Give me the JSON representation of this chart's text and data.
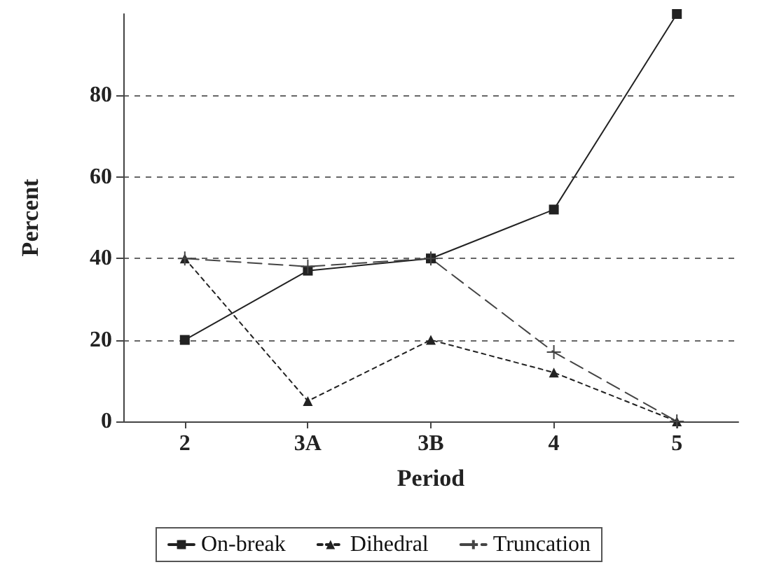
{
  "chart_data": {
    "type": "line",
    "xlabel": "Period",
    "ylabel": "Percent",
    "categories": [
      "2",
      "3A",
      "3B",
      "4",
      "5"
    ],
    "series": [
      {
        "name": "On-break",
        "color": "#222222",
        "marker": "square",
        "line_style": "solid",
        "values": [
          20,
          37,
          40,
          52,
          100
        ]
      },
      {
        "name": "Dihedral",
        "color": "#222222",
        "marker": "triangle",
        "line_style": "dotted",
        "values": [
          40,
          5,
          20,
          12,
          0
        ]
      },
      {
        "name": "Truncation",
        "color": "#444444",
        "marker": "cross",
        "line_style": "dashed",
        "values": [
          40,
          38,
          40,
          17,
          0
        ]
      }
    ],
    "ylim": [
      0,
      100
    ],
    "yticks": [
      0,
      20,
      40,
      60,
      80
    ],
    "grid": "y",
    "legend": "bottom"
  }
}
